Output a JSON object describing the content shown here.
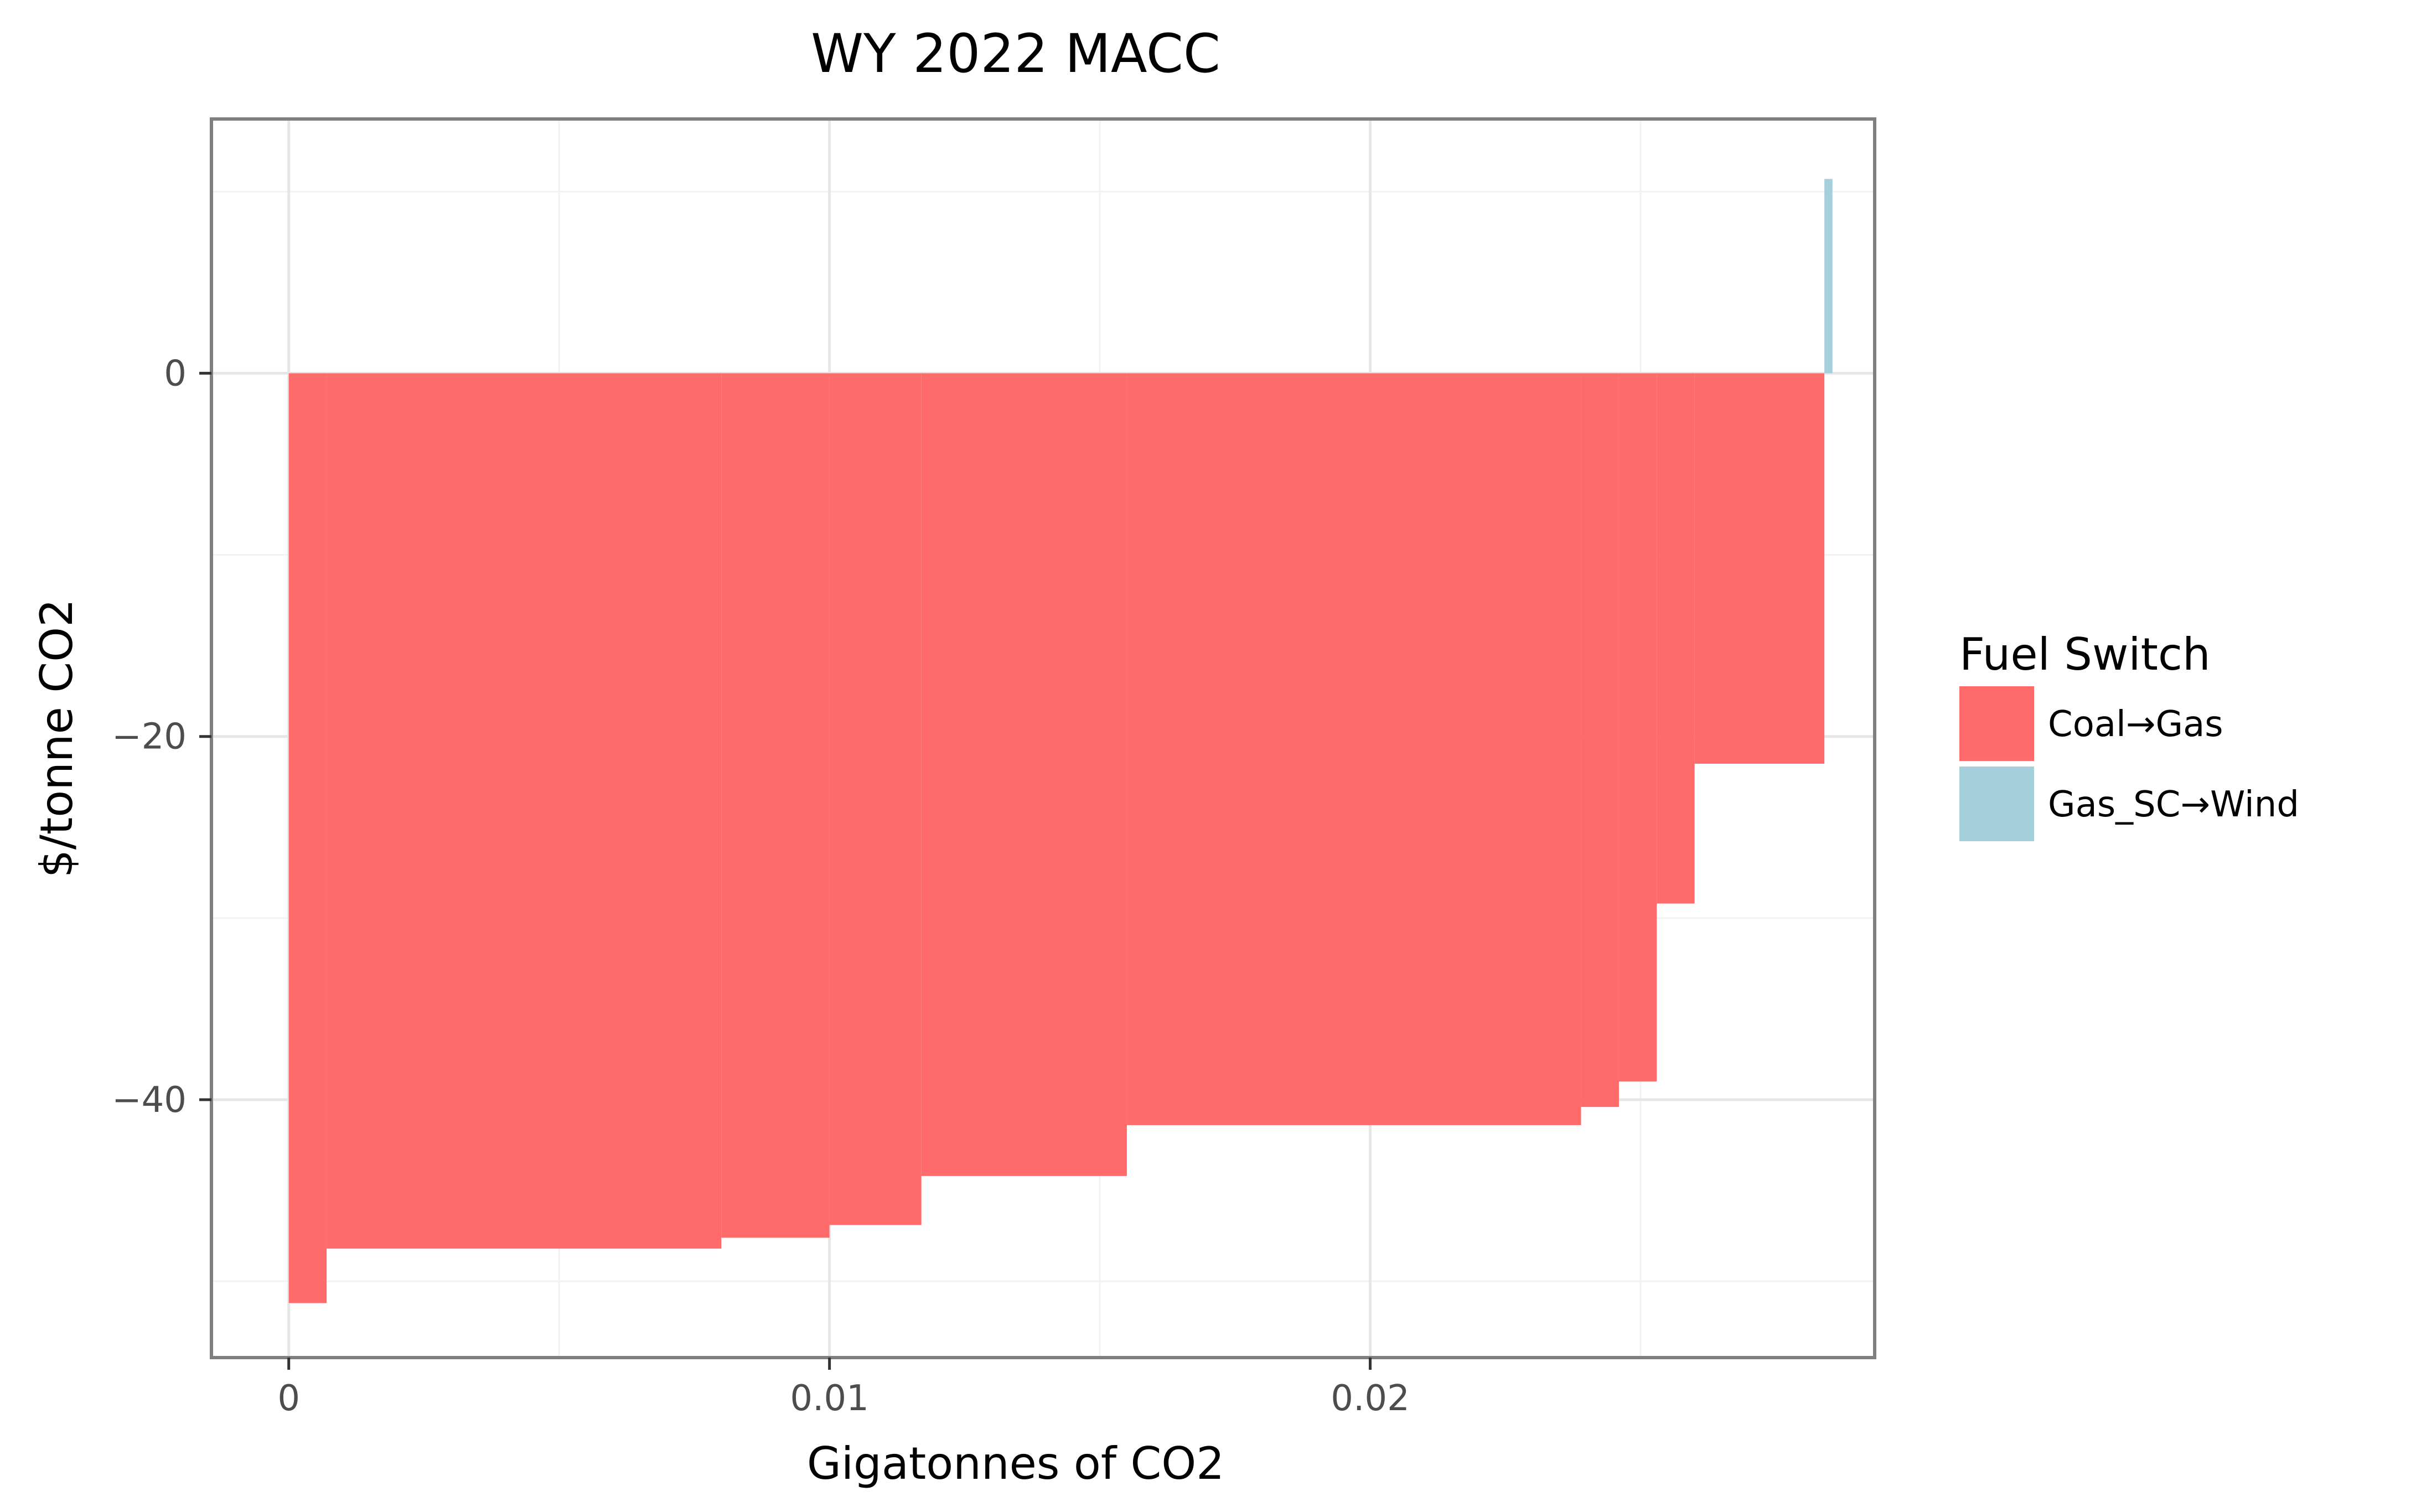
{
  "chart_data": {
    "type": "bar",
    "title": "WY 2022 MACC",
    "xlabel": "Gigatonnes of CO2",
    "ylabel": "$/tonne CO2",
    "xlim": [
      -0.00143,
      0.02933
    ],
    "ylim": [
      -54.2,
      14.0
    ],
    "x_ticks": [
      0,
      0.01,
      0.02
    ],
    "x_tick_labels": [
      "0",
      "0.01",
      "0.02"
    ],
    "y_ticks": [
      0,
      -20,
      -40
    ],
    "y_tick_labels": [
      "0",
      "−20",
      "−40"
    ],
    "grid": true,
    "legend": {
      "title": "Fuel Switch",
      "position": "right",
      "entries": [
        {
          "label": "Coal→Gas",
          "color": "#ff6b6b"
        },
        {
          "label": "Gas_SC→Wind",
          "color": "#a6cfdc"
        }
      ]
    },
    "series": [
      {
        "category": "Coal→Gas",
        "color": "#ff6b6b",
        "bars": [
          {
            "x0": 0.0,
            "x1": 0.0007,
            "y": -51.2
          },
          {
            "x0": 0.0007,
            "x1": 0.008,
            "y": -48.2
          },
          {
            "x0": 0.008,
            "x1": 0.01,
            "y": -47.6
          },
          {
            "x0": 0.01,
            "x1": 0.0117,
            "y": -46.9
          },
          {
            "x0": 0.0117,
            "x1": 0.0155,
            "y": -44.2
          },
          {
            "x0": 0.0155,
            "x1": 0.0239,
            "y": -41.4
          },
          {
            "x0": 0.0239,
            "x1": 0.0246,
            "y": -40.4
          },
          {
            "x0": 0.0246,
            "x1": 0.0253,
            "y": -39.0
          },
          {
            "x0": 0.0253,
            "x1": 0.026,
            "y": -29.2
          },
          {
            "x0": 0.026,
            "x1": 0.0284,
            "y": -21.5
          }
        ]
      },
      {
        "category": "Gas_SC→Wind",
        "color": "#a6cfdc",
        "bars": [
          {
            "x0": 0.0284,
            "x1": 0.02855,
            "y": 10.7
          }
        ]
      }
    ]
  }
}
